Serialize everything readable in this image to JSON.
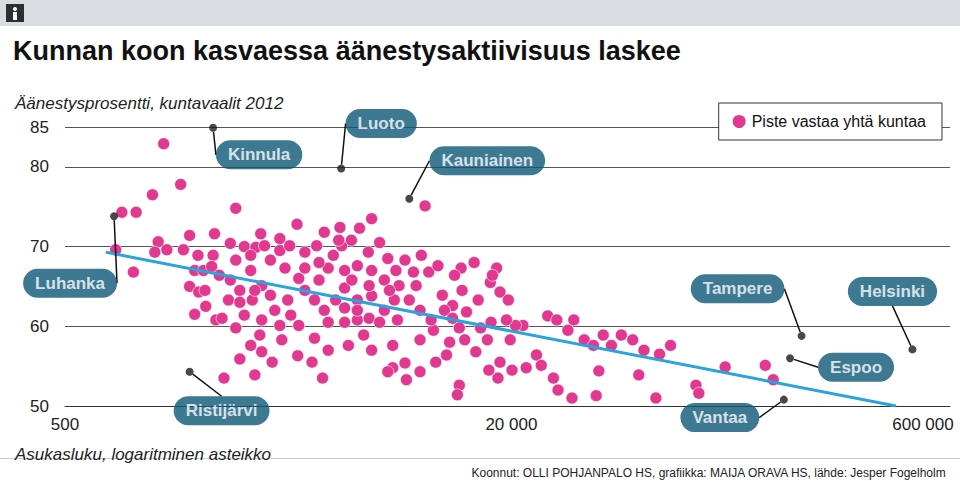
{
  "chart_data": {
    "type": "scatter",
    "title": "Kunnan koon kasvaessa äänestysaktiivisuus laskee",
    "y_label": "Äänestysprosentti, kuntavaalit 2012",
    "x_label": "Asukasluku, logaritminen asteikko",
    "source": "Koonnut: OLLI POHJANPALO HS, grafiikka: MAIJA ORAVA HS, lähde: Jesper Fogelholm",
    "log": "x",
    "grid": true,
    "legend": "upper right",
    "tick_labels": true,
    "xlim": [
      500,
      750000
    ],
    "xticks": [
      500,
      {
        "value": 20000,
        "label": "20 000"
      },
      {
        "value": 600000,
        "label": "600 000"
      }
    ],
    "ylim": [
      50,
      85
    ],
    "yticks": [
      50,
      60,
      70,
      80,
      85
    ],
    "series": [
      {
        "name": "Piste vastaa yhtä kuntaa",
        "type": "scatter",
        "marker": "circle",
        "color": "#e0398f",
        "x": [
          1130,
          1300,
          1030,
          800,
          900,
          880,
          760,
          1080,
          1160,
          1330,
          1400,
          1050,
          2050,
          9800,
          6300,
          5700,
          4850,
          3400,
          2520,
          2950,
          1720,
          1500,
          1700,
          1960,
          2200,
          2420,
          1460,
          1570,
          1680,
          1400,
          1510,
          1600,
          1460,
          1740,
          1960,
          2120,
          1930,
          2320,
          2540,
          2350,
          2730,
          3080,
          3450,
          2200,
          2540,
          2830,
          3150,
          3630,
          3930,
          4080,
          4400,
          4590,
          4920,
          5330,
          6130,
          6730,
          7200,
          7700,
          5040,
          5600,
          6300,
          7000,
          7800,
          8600,
          9100,
          10100,
          10900,
          11300,
          12300,
          13300,
          13800,
          15200,
          16800,
          17700,
          13200,
          3450,
          3930,
          4400,
          5200,
          5900,
          6300,
          7500,
          8300,
          7500,
          9400,
          10500,
          12000,
          13000,
          14900,
          16400,
          18200,
          17900,
          20100,
          13000,
          22000,
          20700,
          19800,
          24600,
          27000,
          29100,
          31900,
          33500,
          36500,
          39400,
          42700,
          45700,
          49600,
          54500,
          59800,
          68000,
          74500,
          57300,
          66000,
          33000,
          40300,
          28300,
          25600,
          22600,
          29400,
          91900,
          94100,
          117000,
          174000,
          163000,
          41200,
          1860,
          2400,
          4200,
          3000,
          2500,
          2050,
          1830,
          4400,
          5040,
          5600,
          6170,
          6730,
          12800,
          16600,
          8300,
          9500,
          8900,
          12500,
          14700,
          17100,
          18200,
          19500,
          19200,
          16900,
          15500,
          13600,
          11700,
          10700,
          9400,
          8400,
          7200,
          3850,
          3420,
          2770,
          2540,
          2320,
          2120,
          2950,
          3230,
          1590,
          1790,
          2050,
          2320,
          2600,
          2950,
          3200,
          3630,
          4000,
          4260,
          4800,
          4080,
          3630,
          5040,
          5600,
          6300,
          5350,
          7000,
          7900,
          6170,
          4680,
          4260,
          5040,
          5600,
          7600,
          7300,
          9400,
          10300,
          11500,
          12300,
          2120,
          2400,
          2730
        ],
        "values": [
          82.9,
          77.8,
          76.5,
          74.3,
          74.3,
          66.8,
          69.6,
          70.6,
          69.6,
          69.6,
          71.4,
          69.3,
          74.8,
          75.1,
          73.5,
          72.3,
          72.4,
          72.8,
          71.6,
          71.0,
          71.6,
          68.9,
          68.9,
          70.4,
          70.0,
          69.9,
          67.0,
          67.0,
          67.5,
          65.0,
          64.3,
          62.5,
          61.5,
          60.8,
          65.8,
          64.5,
          63.3,
          67.0,
          65.1,
          63.3,
          68.3,
          67.3,
          66.0,
          61.4,
          60.8,
          62.0,
          63.3,
          64.5,
          63.3,
          65.8,
          67.3,
          68.9,
          70.1,
          70.8,
          69.3,
          70.5,
          68.5,
          67.0,
          64.8,
          63.3,
          63.8,
          62.0,
          60.8,
          63.3,
          65.1,
          66.8,
          67.6,
          63.9,
          62.6,
          64.5,
          61.8,
          63.3,
          65.5,
          67.3,
          67.3,
          60.1,
          58.5,
          57.0,
          57.6,
          58.9,
          57.0,
          57.6,
          55.4,
          54.8,
          58.3,
          59.5,
          58.0,
          59.8,
          56.8,
          58.3,
          55.5,
          53.5,
          54.5,
          52.6,
          60.1,
          60.1,
          58.3,
          56.4,
          61.3,
          60.8,
          59.5,
          60.8,
          58.3,
          57.6,
          58.9,
          57.6,
          58.9,
          58.3,
          57.0,
          56.5,
          57.6,
          53.9,
          51.0,
          51.0,
          51.3,
          53.5,
          55.1,
          54.8,
          52.0,
          52.6,
          51.6,
          54.9,
          53.3,
          55.1,
          54.4,
          53.5,
          53.9,
          53.5,
          58.3,
          58.9,
          59.8,
          61.0,
          60.5,
          60.5,
          60.8,
          61.0,
          60.5,
          51.4,
          54.5,
          68.3,
          68.9,
          66.8,
          66.4,
          68.0,
          66.4,
          64.3,
          63.3,
          60.8,
          60.5,
          59.8,
          58.3,
          56.4,
          55.5,
          54.3,
          53.3,
          54.3,
          55.5,
          56.3,
          55.5,
          56.8,
          57.6,
          55.9,
          60.1,
          61.4,
          64.5,
          66.4,
          68.3,
          68.9,
          70.1,
          69.5,
          70.1,
          69.3,
          70.1,
          71.8,
          70.8,
          68.0,
          67.3,
          67.0,
          67.6,
          67.0,
          65.8,
          65.8,
          65.1,
          65.1,
          63.3,
          62.0,
          62.3,
          62.0,
          63.3,
          64.5,
          62.0,
          60.8,
          62.0,
          61.0,
          63.0,
          64.5,
          63.9
        ]
      },
      {
        "type": "line",
        "line_style": "solid",
        "color": "#2ba3dc",
        "x": [
          700,
          480000
        ],
        "values": [
          69.3,
          50.0
        ]
      }
    ],
    "annotations": {
      "color": "#1a1a1a",
      "points": [
        {
          "text": "Luhanka",
          "x": 750,
          "y": 73.8
        },
        {
          "text": "Kinnula",
          "x": 1700,
          "y": 84.9
        },
        {
          "text": "Luoto",
          "x": 4900,
          "y": 79.8
        },
        {
          "text": "Kauniainen",
          "x": 8600,
          "y": 76.0
        },
        {
          "text": "Ristijärvi",
          "x": 1400,
          "y": 54.3
        },
        {
          "text": "Tampere",
          "x": 220000,
          "y": 58.8
        },
        {
          "text": "Espoo",
          "x": 200000,
          "y": 56.0
        },
        {
          "text": "Helsinki",
          "x": 550000,
          "y": 57.1
        },
        {
          "text": "Vantaa",
          "x": 190000,
          "y": 50.8
        }
      ]
    }
  }
}
